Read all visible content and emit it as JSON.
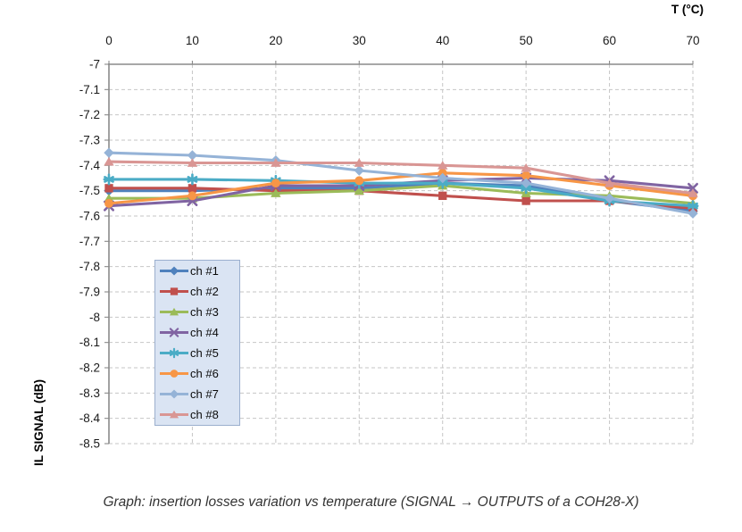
{
  "caption": "Graph: insertion losses variation vs temperature (SIGNAL → OUTPUTS of a COH28-X)",
  "colors": {
    "gridline": "#C6C6C6",
    "axis": "#8A8A8A",
    "tick_label": "#1a1a1a",
    "legend_bg": "#DAE4F3",
    "legend_border": "#9BAFCE",
    "caption_text": "#333333"
  },
  "chart_data": {
    "type": "line",
    "title": "",
    "x_axis_title": "T (°C)",
    "y_axis_title": "IL SIGNAL (dB)",
    "xlabel_position": "top-right",
    "legend_position": "inside-plot-left",
    "grid": "dashed-both",
    "xlim": [
      0,
      70
    ],
    "ylim": [
      -8.5,
      -7
    ],
    "x_ticks": [
      0,
      10,
      20,
      30,
      40,
      50,
      60,
      70
    ],
    "y_tick_values": [
      -7,
      -7.1,
      -7.2,
      -7.3,
      -7.4,
      -7.5,
      -7.6,
      -7.7,
      -7.8,
      -7.9,
      -8,
      -8.1,
      -8.2,
      -8.3,
      -8.4,
      -8.5
    ],
    "y_tick_labels": [
      "-7",
      "-7.1",
      "-7.2",
      "-7.3",
      "-7.4",
      "-7.5",
      "-7.6",
      "-7.7",
      "-7.8",
      "-7.9",
      "-8",
      "-8.1",
      "-8.2",
      "-8.3",
      "-8.4",
      "-8.5"
    ],
    "x": [
      0,
      10,
      20,
      30,
      40,
      50,
      60,
      70
    ],
    "series": [
      {
        "name": "ch #1",
        "color": "#4F81BD",
        "marker": "diamond",
        "values": [
          -7.5,
          -7.5,
          -7.49,
          -7.49,
          -7.47,
          -7.48,
          -7.54,
          -7.58
        ]
      },
      {
        "name": "ch #2",
        "color": "#C0504D",
        "marker": "square",
        "values": [
          -7.49,
          -7.49,
          -7.5,
          -7.5,
          -7.52,
          -7.54,
          -7.54,
          -7.57
        ]
      },
      {
        "name": "ch #3",
        "color": "#9BBB59",
        "marker": "triangle",
        "values": [
          -7.53,
          -7.53,
          -7.51,
          -7.5,
          -7.48,
          -7.51,
          -7.52,
          -7.55
        ]
      },
      {
        "name": "ch #4",
        "color": "#8064A2",
        "marker": "x",
        "values": [
          -7.56,
          -7.54,
          -7.48,
          -7.48,
          -7.46,
          -7.45,
          -7.46,
          -7.49
        ]
      },
      {
        "name": "ch #5",
        "color": "#4BACC6",
        "marker": "asterisk",
        "values": [
          -7.455,
          -7.455,
          -7.46,
          -7.47,
          -7.47,
          -7.49,
          -7.54,
          -7.56
        ]
      },
      {
        "name": "ch #6",
        "color": "#F79646",
        "marker": "circle",
        "values": [
          -7.55,
          -7.52,
          -7.47,
          -7.46,
          -7.43,
          -7.44,
          -7.48,
          -7.52
        ]
      },
      {
        "name": "ch #7",
        "color": "#95B3D7",
        "marker": "diamond",
        "values": [
          -7.35,
          -7.36,
          -7.38,
          -7.42,
          -7.45,
          -7.47,
          -7.53,
          -7.59
        ]
      },
      {
        "name": "ch #8",
        "color": "#D99694",
        "marker": "triangle",
        "values": [
          -7.385,
          -7.39,
          -7.39,
          -7.39,
          -7.4,
          -7.41,
          -7.47,
          -7.51
        ]
      }
    ]
  }
}
